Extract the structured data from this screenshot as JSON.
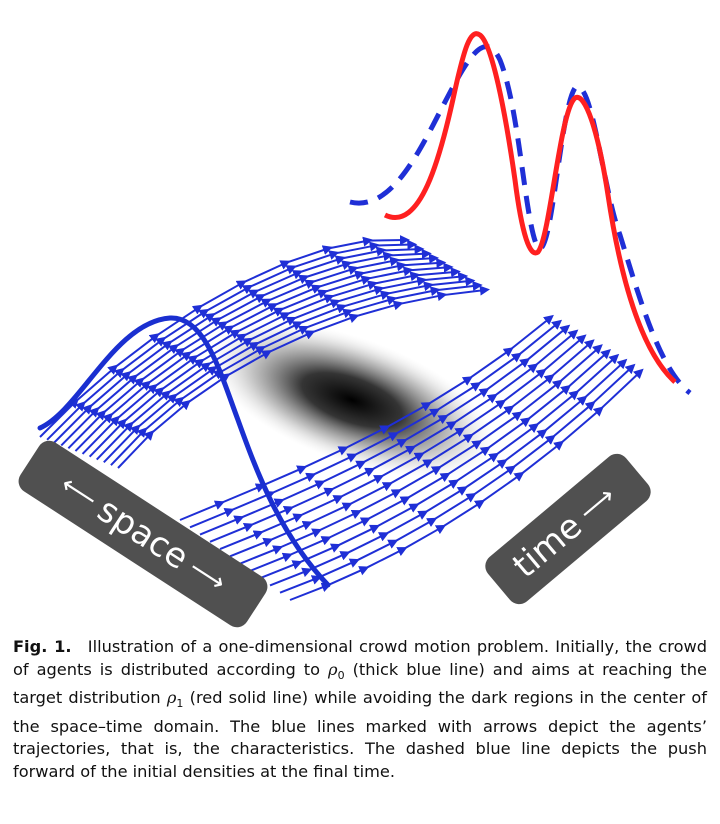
{
  "figure": {
    "space_label": "space",
    "time_label": "time",
    "colors": {
      "trajectory": "#1f2fd6",
      "rho0": "#1a2fd0",
      "rho1_target": "#ff2020",
      "pushforward": "#1f2fd6",
      "obstacle": "#000000",
      "label_background": "#505050"
    }
  },
  "caption": {
    "fig_number": "Fig. 1.",
    "text_1": "Illustration of a one-dimensional crowd motion problem. Initially, the crowd of agents is distributed according to ",
    "rho0_symbol": "ρ",
    "rho0_sub": "0",
    "text_2": " (thick blue line) and aims at reaching the target distribution ",
    "rho1_symbol": "ρ",
    "rho1_sub": "1",
    "text_3": " (red solid line) while avoiding the dark regions in the center of the space–time domain. The blue lines marked with arrows depict the agents’ trajectories, that is, the characteristics. The dashed blue line depicts the push forward of the initial densities at the final time."
  }
}
